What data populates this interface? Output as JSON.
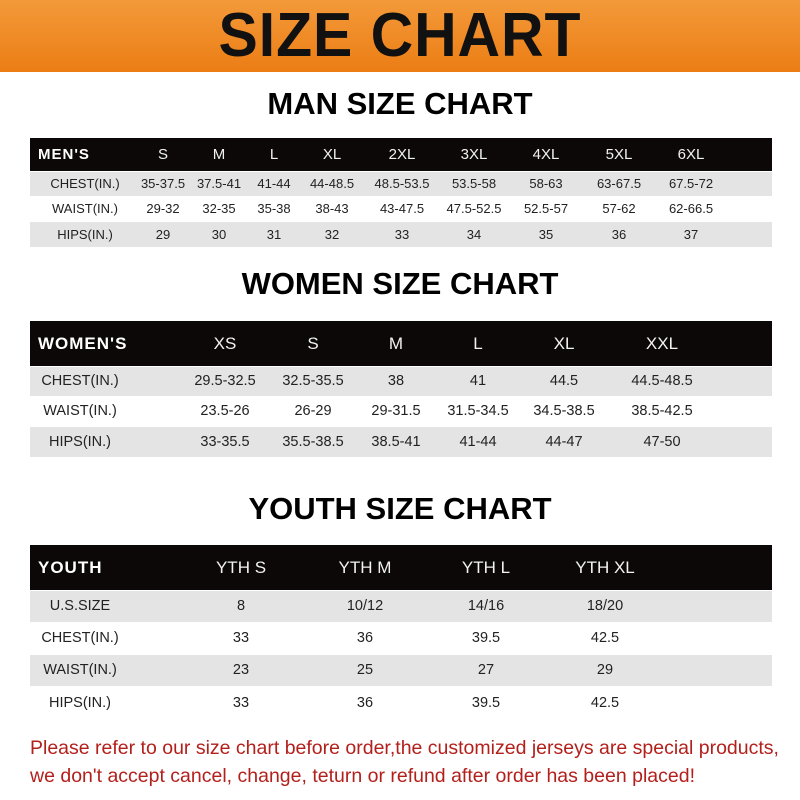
{
  "banner": {
    "title": "SIZE CHART",
    "color": "#ee8420"
  },
  "men": {
    "title": "MAN SIZE CHART",
    "header": [
      "MEN'S",
      "S",
      "M",
      "L",
      "XL",
      "2XL",
      "3XL",
      "4XL",
      "5XL",
      "6XL"
    ],
    "rows": [
      [
        "CHEST(IN.)",
        "35-37.5",
        "37.5-41",
        "41-44",
        "44-48.5",
        "48.5-53.5",
        "53.5-58",
        "58-63",
        "63-67.5",
        "67.5-72"
      ],
      [
        "WAIST(IN.)",
        "29-32",
        "32-35",
        "35-38",
        "38-43",
        "43-47.5",
        "47.5-52.5",
        "52.5-57",
        "57-62",
        "62-66.5"
      ],
      [
        "HIPS(IN.)",
        "29",
        "30",
        "31",
        "32",
        "33",
        "34",
        "35",
        "36",
        "37"
      ]
    ]
  },
  "women": {
    "title": "WOMEN SIZE CHART",
    "header": [
      "WOMEN'S",
      "XS",
      "S",
      "M",
      "L",
      "XL",
      "XXL"
    ],
    "rows": [
      [
        "CHEST(IN.)",
        "29.5-32.5",
        "32.5-35.5",
        "38",
        "41",
        "44.5",
        "44.5-48.5"
      ],
      [
        "WAIST(IN.)",
        "23.5-26",
        "26-29",
        "29-31.5",
        "31.5-34.5",
        "34.5-38.5",
        "38.5-42.5"
      ],
      [
        "HIPS(IN.)",
        "33-35.5",
        "35.5-38.5",
        "38.5-41",
        "41-44",
        "44-47",
        "47-50"
      ]
    ]
  },
  "youth": {
    "title": "YOUTH SIZE CHART",
    "header": [
      "YOUTH",
      "YTH S",
      "YTH M",
      "YTH L",
      "YTH XL"
    ],
    "rows": [
      [
        "U.S.SIZE",
        "8",
        "10/12",
        "14/16",
        "18/20"
      ],
      [
        "CHEST(IN.)",
        "33",
        "36",
        "39.5",
        "42.5"
      ],
      [
        "WAIST(IN.)",
        "23",
        "25",
        "27",
        "29"
      ],
      [
        "HIPS(IN.)",
        "33",
        "36",
        "39.5",
        "42.5"
      ]
    ]
  },
  "notice": [
    "Please refer to our size chart before order,the customized jerseys are special products,",
    "we don't accept cancel, change, teturn or refund after order has been placed!"
  ]
}
